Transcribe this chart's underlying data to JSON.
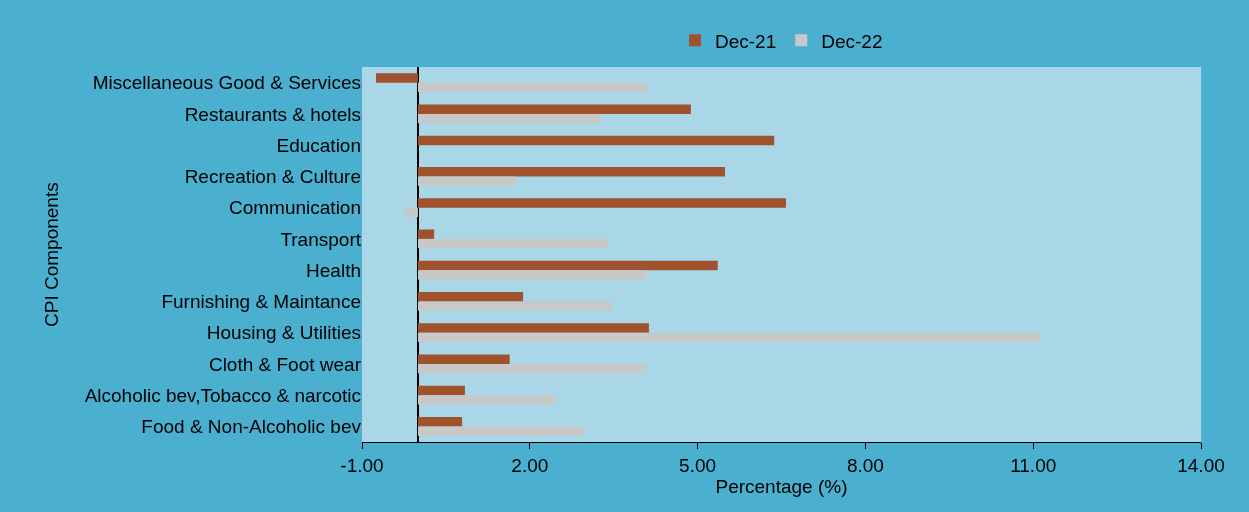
{
  "chart_data": {
    "type": "bar",
    "orientation": "horizontal",
    "xlabel": "Percentage (%)",
    "ylabel": "CPI Components",
    "categories": [
      "Miscellaneous Good & Services",
      "Restaurants & hotels",
      "Education",
      "Recreation & Culture",
      "Communication",
      "Transport",
      "Health",
      "Furnishing & Maintance",
      "Housing & Utilities",
      "Cloth & Foot wear",
      "Alcoholic bev,Tobacco & narcotic",
      "Food & Non-Alcoholic bev"
    ],
    "series": [
      {
        "name": "Dec-21",
        "color": "#a0522d",
        "values": [
          -0.75,
          4.88,
          6.37,
          5.49,
          6.58,
          0.29,
          5.36,
          1.88,
          4.13,
          1.64,
          0.84,
          0.79
        ]
      },
      {
        "name": "Dec-22",
        "color": "#c8c8c8",
        "values": [
          4.11,
          3.27,
          0,
          1.75,
          -0.21,
          3.4,
          4.08,
          3.47,
          11.12,
          4.06,
          2.47,
          2.95
        ]
      }
    ],
    "xlim": [
      -1,
      14
    ],
    "xticks": [
      {
        "value": -1,
        "label": "-1.00"
      },
      {
        "value": 2,
        "label": "2.00"
      },
      {
        "value": 5,
        "label": "5.00"
      },
      {
        "value": 8,
        "label": "8.00"
      },
      {
        "value": 11,
        "label": "11.00"
      },
      {
        "value": 14,
        "label": "14.00"
      }
    ],
    "grid": false,
    "legend": "top"
  }
}
